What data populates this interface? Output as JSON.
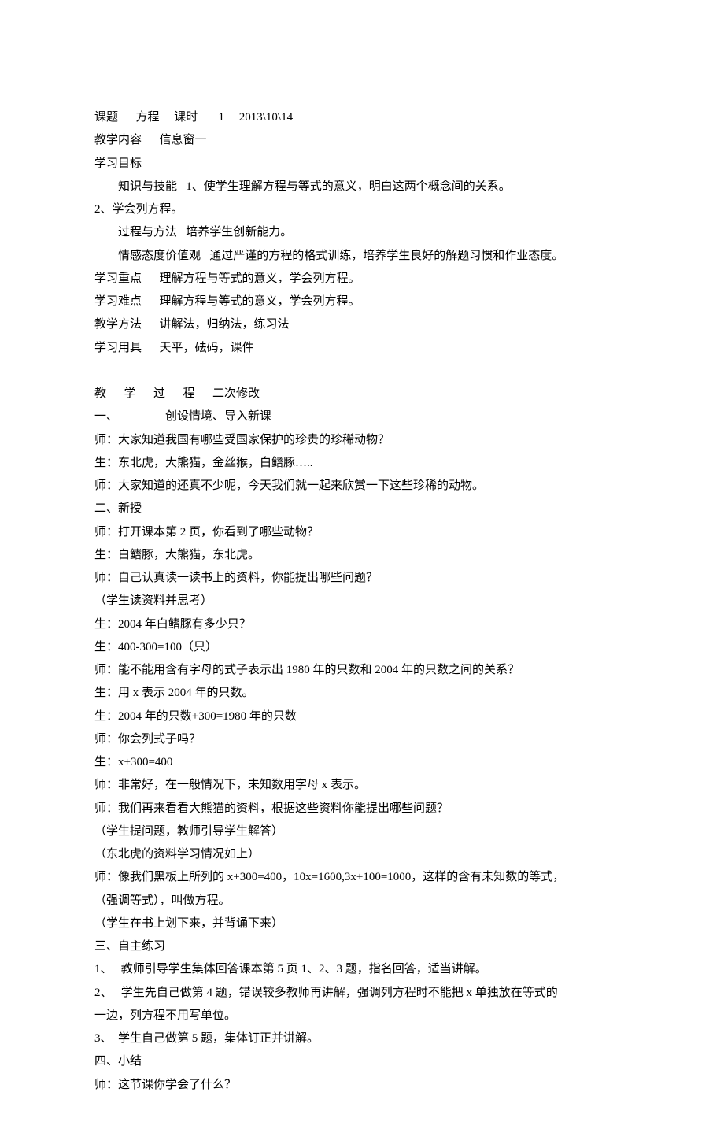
{
  "doc": {
    "l1": "课题      方程     课时       1     2013\\10\\14",
    "l2": "教学内容      信息窗一",
    "l3": "学习目标",
    "l4": "知识与技能   1、使学生理解方程与等式的意义，明白这两个概念间的关系。",
    "l5": "2、学会列方程。",
    "l6": "过程与方法   培养学生创新能力。",
    "l7": "情感态度价值观   通过严谨的方程的格式训练，培养学生良好的解题习惯和作业态度。",
    "l8": "学习重点      理解方程与等式的意义，学会列方程。",
    "l9": "学习难点      理解方程与等式的意义，学会列方程。",
    "l10": "教学方法      讲解法，归纳法，练习法",
    "l11": "学习用具      天平，砝码，课件",
    "l12": "教      学      过      程      二次修改",
    "l13": "一、                创设情境、导入新课",
    "l14": "师：大家知道我国有哪些受国家保护的珍贵的珍稀动物？",
    "l15": "生：东北虎，大熊猫，金丝猴，白鳍豚…..",
    "l16": "师：大家知道的还真不少呢，今天我们就一起来欣赏一下这些珍稀的动物。",
    "l17": "二、新授",
    "l18": "师：打开课本第 2 页，你看到了哪些动物？",
    "l19": "生：白鳍豚，大熊猫，东北虎。",
    "l20": "师：自己认真读一读书上的资料，你能提出哪些问题？",
    "l21": "（学生读资料并思考）",
    "l22": "生：2004 年白鳍豚有多少只？",
    "l23": "生：400-300=100（只）",
    "l24": "师：能不能用含有字母的式子表示出 1980 年的只数和 2004 年的只数之间的关系？",
    "l25": "生：用 x 表示 2004 年的只数。",
    "l26": "生：2004 年的只数+300=1980 年的只数",
    "l27": "师：你会列式子吗？",
    "l28": "生：x+300=400",
    "l29": "师：非常好，在一般情况下，未知数用字母 x 表示。",
    "l30": "师：我们再来看看大熊猫的资料，根据这些资料你能提出哪些问题？",
    "l31": "（学生提问题，教师引导学生解答）",
    "l32": "（东北虎的资料学习情况如上）",
    "l33": "师：像我们黑板上所列的 x+300=400，10x=1600,3x+100=1000，这样的含有未知数的等式，",
    "l34": "（强调等式），叫做方程。",
    "l35": "（学生在书上划下来，并背诵下来）",
    "l36": "三、自主练习",
    "l37": "1、   教师引导学生集体回答课本第 5 页 1、2、3 题，指名回答，适当讲解。",
    "l38": "2、   学生先自己做第 4 题，错误较多教师再讲解，强调列方程时不能把 x 单独放在等式的",
    "l39": "一边，列方程不用写单位。",
    "l40": "3、  学生自己做第 5 题，集体订正并讲解。",
    "l41": "四、小结",
    "l42": "师：这节课你学会了什么？"
  }
}
